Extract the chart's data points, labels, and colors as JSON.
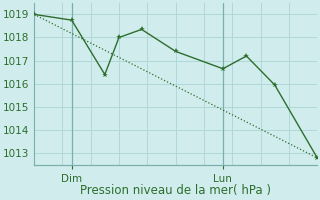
{
  "xlabel": "Pression niveau de la mer( hPa )",
  "ylim": [
    1012.5,
    1019.5
  ],
  "xlim": [
    0,
    10
  ],
  "yticks": [
    1013,
    1014,
    1015,
    1016,
    1017,
    1018,
    1019
  ],
  "xtick_positions": [
    1.33,
    6.67
  ],
  "xtick_labels": [
    "Dim",
    "Lun"
  ],
  "vline_x": [
    1.33,
    6.67
  ],
  "grid_x_count": 10,
  "line1_x": [
    0.0,
    1.33,
    2.5,
    3.0,
    3.8,
    5.0,
    6.67,
    7.5,
    8.5,
    10.0
  ],
  "line1_y": [
    1019.0,
    1018.75,
    1016.4,
    1018.0,
    1018.35,
    1017.4,
    1016.65,
    1017.2,
    1015.95,
    1012.8
  ],
  "line2_x": [
    0.0,
    10.0
  ],
  "line2_y": [
    1019.0,
    1012.8
  ],
  "line_color": "#2d6e2d",
  "bg_color": "#d0ecec",
  "grid_color": "#b0d8d8",
  "tick_label_color": "#2d6e2d",
  "xlabel_color": "#2d6e2d",
  "xlabel_fontsize": 8.5,
  "tick_fontsize": 7.5,
  "marker_size": 4
}
